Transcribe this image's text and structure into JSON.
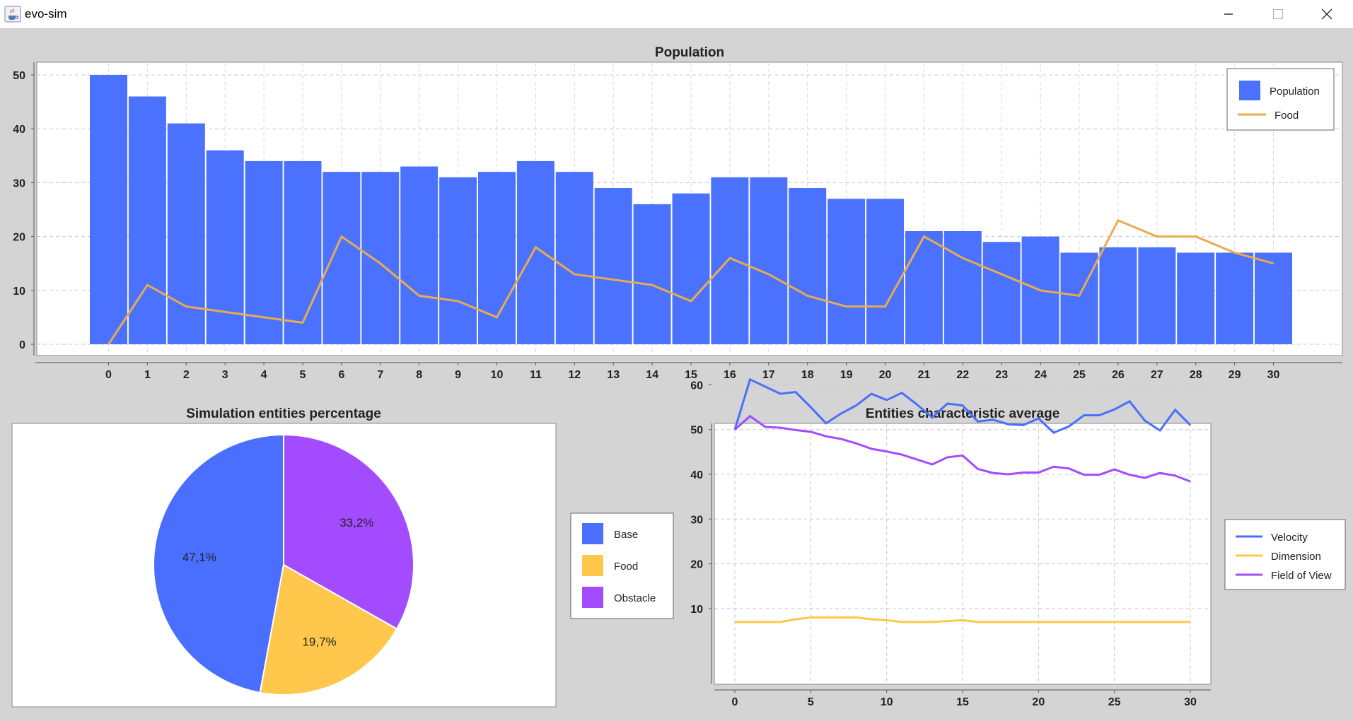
{
  "window": {
    "title": "evo-sim",
    "icons": {
      "app": "java-coffee-icon",
      "minimize": "minimize-icon",
      "maximize": "maximize-icon",
      "close": "close-icon"
    }
  },
  "colors": {
    "blue": "#4a6ffe",
    "yellow": "#ffc74c",
    "purple": "#a34bff",
    "bar_blue": "#4a72ff",
    "food_line": "#e8ab4f",
    "window_bg": "#d4d4d4",
    "plot_bg": "#ffffff"
  },
  "chart_data": [
    {
      "type": "bar",
      "title": "Population",
      "xlabel": "",
      "ylabel": "",
      "categories": [
        "0",
        "1",
        "2",
        "3",
        "4",
        "5",
        "6",
        "7",
        "8",
        "9",
        "10",
        "11",
        "12",
        "13",
        "14",
        "15",
        "16",
        "17",
        "18",
        "19",
        "20",
        "21",
        "22",
        "23",
        "24",
        "25",
        "26",
        "27",
        "28",
        "29",
        "30"
      ],
      "series": [
        {
          "name": "Population",
          "kind": "bar",
          "values": [
            50,
            46,
            41,
            36,
            34,
            34,
            32,
            32,
            33,
            31,
            32,
            34,
            32,
            29,
            26,
            28,
            31,
            31,
            29,
            27,
            27,
            21,
            21,
            19,
            20,
            17,
            18,
            18,
            17,
            17,
            17
          ]
        },
        {
          "name": "Food",
          "kind": "line",
          "values": [
            0,
            11,
            7,
            6,
            5,
            4,
            20,
            15,
            9,
            8,
            5,
            18,
            13,
            12,
            11,
            8,
            16,
            13,
            9,
            7,
            7,
            20,
            16,
            13,
            10,
            9,
            23,
            20,
            20,
            17,
            15
          ]
        }
      ],
      "ylim": [
        0,
        50
      ],
      "yticks": [
        0,
        10,
        20,
        30,
        40,
        50
      ],
      "grid": true,
      "legend": "top-right"
    },
    {
      "type": "pie",
      "title": "Simulation entities percentage",
      "labels": [
        "Base",
        "Food",
        "Obstacle"
      ],
      "values": [
        47.1,
        19.7,
        33.2
      ],
      "value_labels": [
        "47,1%",
        "19,7%",
        "33,2%"
      ],
      "legend": "right"
    },
    {
      "type": "line",
      "title": "Entities characteristic average",
      "xlabel": "",
      "ylabel": "",
      "x": [
        0,
        1,
        2,
        3,
        4,
        5,
        6,
        7,
        8,
        9,
        10,
        11,
        12,
        13,
        14,
        15,
        16,
        17,
        18,
        19,
        20,
        21,
        22,
        23,
        24,
        25,
        26,
        27,
        28,
        29,
        30
      ],
      "series": [
        {
          "name": "Velocity",
          "values": [
            50,
            61.2,
            59.6,
            58,
            58.4,
            55,
            51.4,
            53.6,
            55.4,
            58,
            56.6,
            58.2,
            55.6,
            52.7,
            55.8,
            55.4,
            51.8,
            52.2,
            51.2,
            51,
            52.5,
            49.3,
            50.7,
            53.2,
            53.2,
            54.5,
            56.3,
            52,
            49.8,
            54.4,
            51
          ]
        },
        {
          "name": "Dimension",
          "values": [
            7,
            7,
            7,
            7,
            7.6,
            8,
            8,
            8,
            8,
            7.6,
            7.4,
            7,
            7,
            7,
            7.2,
            7.4,
            7,
            7,
            7,
            7,
            7,
            7,
            7,
            7,
            7,
            7,
            7,
            7,
            7,
            7,
            7
          ]
        },
        {
          "name": "Field of View",
          "values": [
            50,
            53,
            50.6,
            50.4,
            49.9,
            49.5,
            48.5,
            47.9,
            46.9,
            45.7,
            45.1,
            44.4,
            43.3,
            42.2,
            43.8,
            44.2,
            41.2,
            40.3,
            40,
            40.4,
            40.4,
            41.7,
            41.3,
            39.9,
            39.9,
            41.1,
            39.9,
            39.2,
            40.3,
            39.7,
            38.4
          ]
        }
      ],
      "xticks": [
        0,
        5,
        10,
        15,
        20,
        25,
        30
      ],
      "yticks": [
        10,
        20,
        30,
        40,
        50,
        60
      ],
      "xlim": [
        0,
        30
      ],
      "ylim": [
        5,
        62.5
      ],
      "grid": true,
      "legend": "right"
    }
  ]
}
